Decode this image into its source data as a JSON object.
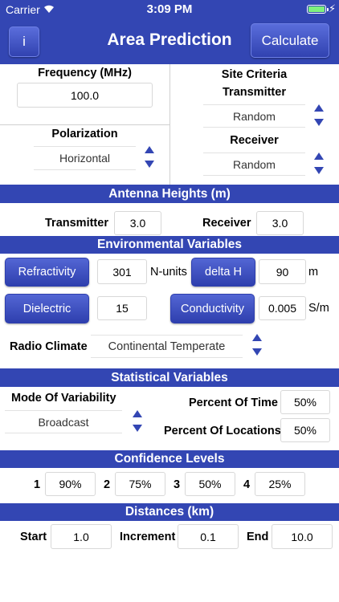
{
  "status_bar": {
    "carrier": "Carrier",
    "time": "3:09 PM"
  },
  "nav": {
    "info_label": "i",
    "title": "Area Prediction",
    "calculate_label": "Calculate"
  },
  "frequency": {
    "label": "Frequency (MHz)",
    "value": "100.0"
  },
  "site_criteria": {
    "label": "Site Criteria",
    "transmitter_label": "Transmitter",
    "transmitter_value": "Random",
    "receiver_label": "Receiver",
    "receiver_value": "Random"
  },
  "polarization": {
    "label": "Polarization",
    "value": "Horizontal"
  },
  "antenna_heights": {
    "header": "Antenna Heights (m)",
    "transmitter_label": "Transmitter",
    "transmitter_value": "3.0",
    "receiver_label": "Receiver",
    "receiver_value": "3.0"
  },
  "environmental": {
    "header": "Environmental Variables",
    "refractivity_label": "Refractivity",
    "refractivity_value": "301",
    "refractivity_unit": "N-units",
    "delta_h_label": "delta H",
    "delta_h_value": "90",
    "delta_h_unit": "m",
    "dielectric_label": "Dielectric",
    "dielectric_value": "15",
    "conductivity_label": "Conductivity",
    "conductivity_value": "0.005",
    "conductivity_unit": "S/m",
    "radio_climate_label": "Radio Climate",
    "radio_climate_value": "Continental Temperate"
  },
  "statistical": {
    "header": "Statistical Variables",
    "mode_label": "Mode Of Variability",
    "mode_value": "Broadcast",
    "time_label": "Percent Of Time",
    "time_value": "50%",
    "locations_label": "Percent Of Locations",
    "locations_value": "50%"
  },
  "confidence": {
    "header": "Confidence Levels",
    "levels": [
      {
        "index": "1",
        "value": "90%"
      },
      {
        "index": "2",
        "value": "75%"
      },
      {
        "index": "3",
        "value": "50%"
      },
      {
        "index": "4",
        "value": "25%"
      }
    ]
  },
  "distances": {
    "header": "Distances (km)",
    "start_label": "Start",
    "start_value": "1.0",
    "increment_label": "Increment",
    "increment_value": "0.1",
    "end_label": "End",
    "end_value": "10.0"
  },
  "colors": {
    "primary": "#3346b3",
    "battery": "#7ef07e"
  }
}
